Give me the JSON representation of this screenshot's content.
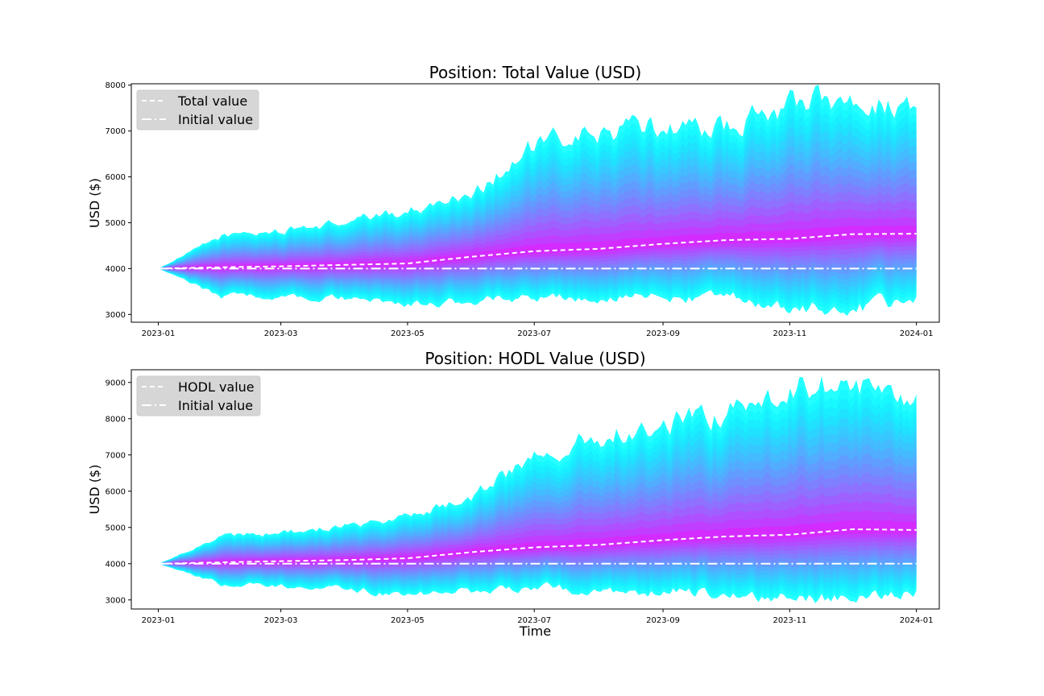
{
  "chart_data": [
    {
      "type": "area",
      "title": "Position: Total Value (USD)",
      "xlabel": "",
      "ylabel": "USD ($)",
      "x_ticks": [
        "2023-01",
        "2023-03",
        "2023-05",
        "2023-07",
        "2023-09",
        "2023-11",
        "2024-01"
      ],
      "x_range": [
        "2022-12-19",
        "2024-01-12"
      ],
      "ylim": [
        2830,
        8030
      ],
      "y_ticks": [
        3000,
        4000,
        5000,
        6000,
        7000,
        8000
      ],
      "grid": false,
      "legend_position": "top-left",
      "legend": [
        {
          "label": "Total value",
          "style": "dashed",
          "color": "#ffffff"
        },
        {
          "label": "Initial value",
          "style": "dashdot",
          "color": "#ffffff"
        }
      ],
      "colors": {
        "outer": "#00ffff",
        "inner": "#ff00ff"
      },
      "x": [
        "2023-01-01",
        "2023-02-01",
        "2023-03-01",
        "2023-04-01",
        "2023-05-01",
        "2023-06-01",
        "2023-07-01",
        "2023-08-01",
        "2023-09-01",
        "2023-10-01",
        "2023-11-01",
        "2023-12-01",
        "2024-01-01"
      ],
      "series": [
        {
          "name": "Total value",
          "values": [
            4000,
            4030,
            4050,
            4080,
            4110,
            4260,
            4380,
            4430,
            4540,
            4620,
            4650,
            4750,
            4760
          ]
        },
        {
          "name": "Initial value",
          "values": [
            4000,
            4000,
            4000,
            4000,
            4000,
            4000,
            4000,
            4000,
            4000,
            4000,
            4000,
            4000,
            4000
          ]
        }
      ],
      "band_upper": [
        4000,
        4720,
        4820,
        5010,
        5250,
        5650,
        6650,
        6950,
        7100,
        7050,
        7600,
        7700,
        7500
      ],
      "band_lower": [
        4000,
        3400,
        3420,
        3350,
        3200,
        3300,
        3420,
        3300,
        3380,
        3350,
        3150,
        3150,
        3300
      ]
    },
    {
      "type": "area",
      "title": "Position: HODL Value (USD)",
      "xlabel": "Time",
      "ylabel": "USD ($)",
      "x_ticks": [
        "2023-01",
        "2023-03",
        "2023-05",
        "2023-07",
        "2023-09",
        "2023-11",
        "2024-01"
      ],
      "x_range": [
        "2022-12-19",
        "2024-01-12"
      ],
      "ylim": [
        2750,
        9350
      ],
      "y_ticks": [
        3000,
        4000,
        5000,
        6000,
        7000,
        8000,
        9000
      ],
      "grid": false,
      "legend_position": "top-left",
      "legend": [
        {
          "label": "HODL value",
          "style": "dashed",
          "color": "#ffffff"
        },
        {
          "label": "Initial value",
          "style": "dashdot",
          "color": "#ffffff"
        }
      ],
      "colors": {
        "outer": "#00ffff",
        "inner": "#ff00ff"
      },
      "x": [
        "2023-01-01",
        "2023-02-01",
        "2023-03-01",
        "2023-04-01",
        "2023-05-01",
        "2023-06-01",
        "2023-07-01",
        "2023-08-01",
        "2023-09-01",
        "2023-10-01",
        "2023-11-01",
        "2023-12-01",
        "2024-01-01"
      ],
      "series": [
        {
          "name": "HODL value",
          "values": [
            4000,
            4040,
            4070,
            4100,
            4150,
            4320,
            4450,
            4520,
            4650,
            4750,
            4800,
            4950,
            4930
          ]
        },
        {
          "name": "Initial value",
          "values": [
            4000,
            4000,
            4000,
            4000,
            4000,
            4000,
            4000,
            4000,
            4000,
            4000,
            4000,
            4000,
            4000
          ]
        }
      ],
      "band_upper": [
        4000,
        4750,
        4850,
        5050,
        5300,
        5800,
        7000,
        7550,
        7900,
        8100,
        8800,
        8950,
        8500
      ],
      "band_lower": [
        4000,
        3420,
        3400,
        3300,
        3150,
        3250,
        3380,
        3200,
        3250,
        3200,
        3050,
        3050,
        3200
      ]
    }
  ]
}
